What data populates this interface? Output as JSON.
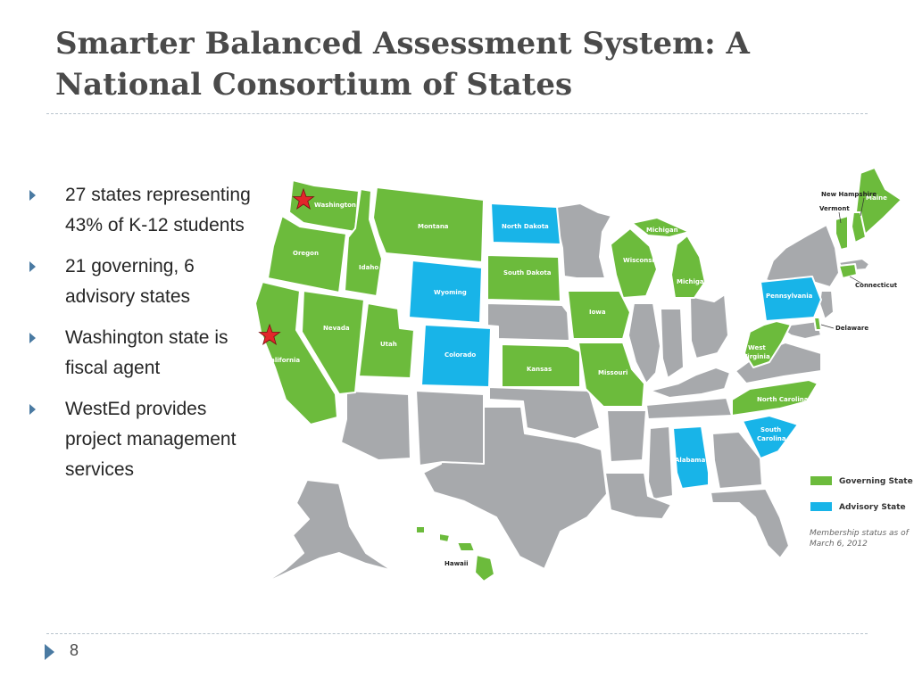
{
  "slide": {
    "title": "Smarter Balanced Assessment System: A National Consortium of States",
    "page_number": "8"
  },
  "bullets": [
    "27 states representing 43% of K-12 students",
    "21 governing, 6 advisory states",
    "Washington state is fiscal agent",
    "WestEd provides project management services"
  ],
  "map": {
    "colors": {
      "governing": "#6cbb3c",
      "advisory": "#18b4e8",
      "non_member": "#a7a9ac",
      "star": "#e2262b"
    },
    "legend": {
      "governing": "Governing State",
      "advisory": "Advisory State"
    },
    "note": [
      "Membership status as of",
      "March 6, 2012"
    ],
    "labels": {
      "washington": "Washington",
      "oregon": "Oregon",
      "california": "California",
      "idaho": "Idaho",
      "nevada": "Nevada",
      "utah": "Utah",
      "montana": "Montana",
      "wyoming": "Wyoming",
      "colorado": "Colorado",
      "north_dakota": "North Dakota",
      "south_dakota": "South Dakota",
      "kansas": "Kansas",
      "iowa": "Iowa",
      "missouri": "Missouri",
      "wisconsin": "Wisconsin",
      "michigan_upper": "Michigan",
      "michigan": "Michigan",
      "pennsylvania": "Pennsylvania",
      "west_virginia": [
        "West",
        "Virginia"
      ],
      "north_carolina": "North Carolina",
      "south_carolina": [
        "South",
        "Carolina"
      ],
      "alabama": "Alabama",
      "hawaii": "Hawaii",
      "maine": "Maine",
      "new_hampshire": "New Hampshire",
      "vermont": "Vermont",
      "connecticut": "Connecticut",
      "delaware": "Delaware"
    }
  }
}
